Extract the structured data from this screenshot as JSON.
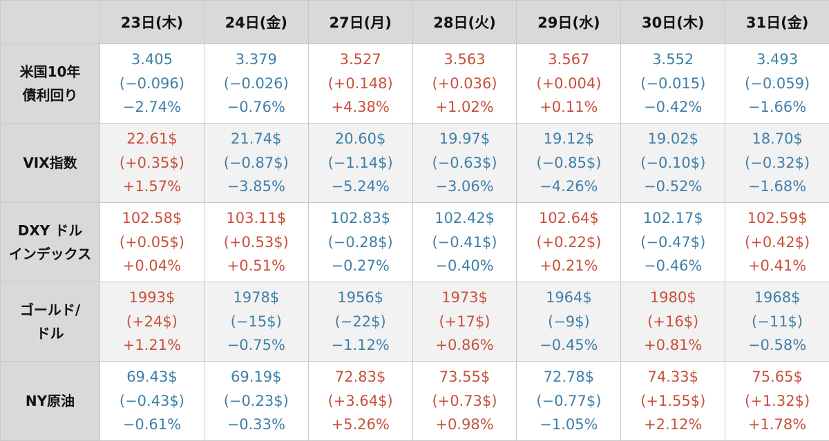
{
  "columns": [
    "23日(木)",
    "24日(金)",
    "27日(月)",
    "28日(火)",
    "29日(水)",
    "30日(木)",
    "31日(金)"
  ],
  "colors": {
    "up": "#c8503c",
    "down": "#3e7fa8",
    "header_bg": "#d9d9d9",
    "row_alt_bg": "#f2f2f2"
  },
  "rows": [
    {
      "label_lines": [
        "米国10年",
        "債利回り"
      ],
      "cells": [
        {
          "trend": "down",
          "value": "3.405",
          "change": "(−0.096)",
          "pct": "−2.74%"
        },
        {
          "trend": "down",
          "value": "3.379",
          "change": "(−0.026)",
          "pct": "−0.76%"
        },
        {
          "trend": "up",
          "value": "3.527",
          "change": "(+0.148)",
          "pct": "+4.38%"
        },
        {
          "trend": "up",
          "value": "3.563",
          "change": "(+0.036)",
          "pct": "+1.02%"
        },
        {
          "trend": "up",
          "value": "3.567",
          "change": "(+0.004)",
          "pct": "+0.11%"
        },
        {
          "trend": "down",
          "value": "3.552",
          "change": "(−0.015)",
          "pct": "−0.42%"
        },
        {
          "trend": "down",
          "value": "3.493",
          "change": "(−0.059)",
          "pct": "−1.66%"
        }
      ]
    },
    {
      "label_lines": [
        "VIX指数"
      ],
      "cells": [
        {
          "trend": "up",
          "value": "22.61$",
          "change": "(+0.35$)",
          "pct": "+1.57%"
        },
        {
          "trend": "down",
          "value": "21.74$",
          "change": "(−0.87$)",
          "pct": "−3.85%"
        },
        {
          "trend": "down",
          "value": "20.60$",
          "change": "(−1.14$)",
          "pct": "−5.24%"
        },
        {
          "trend": "down",
          "value": "19.97$",
          "change": "(−0.63$)",
          "pct": "−3.06%"
        },
        {
          "trend": "down",
          "value": "19.12$",
          "change": "(−0.85$)",
          "pct": "−4.26%"
        },
        {
          "trend": "down",
          "value": "19.02$",
          "change": "(−0.10$)",
          "pct": "−0.52%"
        },
        {
          "trend": "down",
          "value": "18.70$",
          "change": "(−0.32$)",
          "pct": "−1.68%"
        }
      ]
    },
    {
      "label_lines": [
        "DXY ドル",
        "インデックス"
      ],
      "cells": [
        {
          "trend": "up",
          "value": "102.58$",
          "change": "(+0.05$)",
          "pct": "+0.04%"
        },
        {
          "trend": "up",
          "value": "103.11$",
          "change": "(+0.53$)",
          "pct": "+0.51%"
        },
        {
          "trend": "down",
          "value": "102.83$",
          "change": "(−0.28$)",
          "pct": "−0.27%"
        },
        {
          "trend": "down",
          "value": "102.42$",
          "change": "(−0.41$)",
          "pct": "−0.40%"
        },
        {
          "trend": "up",
          "value": "102.64$",
          "change": "(+0.22$)",
          "pct": "+0.21%"
        },
        {
          "trend": "down",
          "value": "102.17$",
          "change": "(−0.47$)",
          "pct": "−0.46%"
        },
        {
          "trend": "up",
          "value": "102.59$",
          "change": "(+0.42$)",
          "pct": "+0.41%"
        }
      ]
    },
    {
      "label_lines": [
        "ゴールド/",
        "ドル"
      ],
      "cells": [
        {
          "trend": "up",
          "value": "1993$",
          "change": "(+24$)",
          "pct": "+1.21%"
        },
        {
          "trend": "down",
          "value": "1978$",
          "change": "(−15$)",
          "pct": "−0.75%"
        },
        {
          "trend": "down",
          "value": "1956$",
          "change": "(−22$)",
          "pct": "−1.12%"
        },
        {
          "trend": "up",
          "value": "1973$",
          "change": "(+17$)",
          "pct": "+0.86%"
        },
        {
          "trend": "down",
          "value": "1964$",
          "change": "(−9$)",
          "pct": "−0.45%"
        },
        {
          "trend": "up",
          "value": "1980$",
          "change": "(+16$)",
          "pct": "+0.81%"
        },
        {
          "trend": "down",
          "value": "1968$",
          "change": "(−11$)",
          "pct": "−0.58%"
        }
      ]
    },
    {
      "label_lines": [
        "NY原油"
      ],
      "cells": [
        {
          "trend": "down",
          "value": "69.43$",
          "change": "(−0.43$)",
          "pct": "−0.61%"
        },
        {
          "trend": "down",
          "value": "69.19$",
          "change": "(−0.23$)",
          "pct": "−0.33%"
        },
        {
          "trend": "up",
          "value": "72.83$",
          "change": "(+3.64$)",
          "pct": "+5.26%"
        },
        {
          "trend": "up",
          "value": "73.55$",
          "change": "(+0.73$)",
          "pct": "+0.98%"
        },
        {
          "trend": "down",
          "value": "72.78$",
          "change": "(−0.77$)",
          "pct": "−1.05%"
        },
        {
          "trend": "up",
          "value": "74.33$",
          "change": "(+1.55$)",
          "pct": "+2.12%"
        },
        {
          "trend": "up",
          "value": "75.65$",
          "change": "(+1.32$)",
          "pct": "+1.78%"
        }
      ]
    }
  ]
}
